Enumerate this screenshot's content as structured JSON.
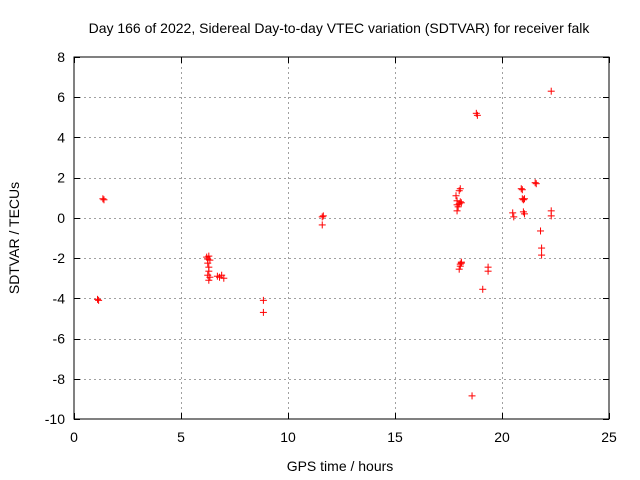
{
  "chart_data": {
    "type": "scatter",
    "title": "Day 166 of 2022, Sidereal Day-to-day VTEC variation (SDTVAR) for receiver falk",
    "xlabel": "GPS time / hours",
    "ylabel": "SDTVAR / TECUs",
    "xlim": [
      0,
      25
    ],
    "ylim": [
      -10,
      8
    ],
    "xticks": [
      0,
      5,
      10,
      15,
      20,
      25
    ],
    "yticks": [
      -10,
      -8,
      -6,
      -4,
      -2,
      0,
      2,
      4,
      6,
      8
    ],
    "xtick_labels": [
      "0",
      "5",
      "10",
      "15",
      "20",
      "25"
    ],
    "ytick_labels": [
      "-10",
      "-8",
      "-6",
      "-4",
      "-2",
      "0",
      "2",
      "4",
      "6",
      "8"
    ],
    "grid": true,
    "marker": "plus",
    "color": "#ff0000",
    "series": [
      {
        "name": "SDTVAR",
        "points": [
          [
            1.1,
            -4.05
          ],
          [
            1.15,
            -4.1
          ],
          [
            1.35,
            0.95
          ],
          [
            1.4,
            0.9
          ],
          [
            6.2,
            -1.95
          ],
          [
            6.25,
            -2.05
          ],
          [
            6.25,
            -2.25
          ],
          [
            6.3,
            -2.45
          ],
          [
            6.3,
            -2.65
          ],
          [
            6.25,
            -2.85
          ],
          [
            6.35,
            -2.95
          ],
          [
            6.3,
            -3.1
          ],
          [
            6.35,
            -2.1
          ],
          [
            6.3,
            -1.9
          ],
          [
            6.7,
            -2.9
          ],
          [
            6.8,
            -2.95
          ],
          [
            6.9,
            -2.85
          ],
          [
            7.0,
            -3.0
          ],
          [
            8.85,
            -4.1
          ],
          [
            8.85,
            -4.7
          ],
          [
            11.6,
            0.05
          ],
          [
            11.65,
            0.1
          ],
          [
            11.6,
            -0.35
          ],
          [
            17.85,
            1.1
          ],
          [
            17.9,
            0.85
          ],
          [
            17.9,
            0.65
          ],
          [
            17.95,
            0.55
          ],
          [
            17.9,
            0.35
          ],
          [
            18.0,
            1.35
          ],
          [
            18.05,
            1.45
          ],
          [
            18.1,
            0.75
          ],
          [
            18.05,
            0.8
          ],
          [
            18.0,
            0.7
          ],
          [
            18.05,
            -2.3
          ],
          [
            18.1,
            -2.25
          ],
          [
            18.05,
            -2.4
          ],
          [
            18.0,
            -2.55
          ],
          [
            18.1,
            -2.2
          ],
          [
            18.6,
            -8.85
          ],
          [
            18.8,
            5.2
          ],
          [
            18.85,
            5.1
          ],
          [
            19.1,
            -3.55
          ],
          [
            19.35,
            -2.45
          ],
          [
            19.35,
            -2.65
          ],
          [
            20.5,
            0.25
          ],
          [
            20.55,
            0.05
          ],
          [
            20.9,
            1.45
          ],
          [
            20.95,
            1.4
          ],
          [
            20.95,
            0.95
          ],
          [
            21.0,
            0.9
          ],
          [
            21.05,
            0.95
          ],
          [
            21.0,
            0.3
          ],
          [
            21.05,
            0.2
          ],
          [
            21.55,
            1.75
          ],
          [
            21.6,
            1.7
          ],
          [
            21.8,
            -0.65
          ],
          [
            21.85,
            -1.5
          ],
          [
            21.85,
            -1.85
          ],
          [
            22.3,
            6.3
          ],
          [
            22.3,
            0.35
          ],
          [
            22.3,
            0.1
          ]
        ]
      }
    ]
  }
}
